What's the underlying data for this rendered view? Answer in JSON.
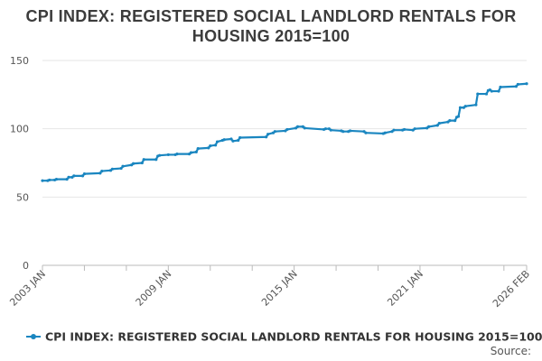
{
  "chart_data": {
    "type": "line",
    "title_lines": [
      "CPI INDEX: REGISTERED SOCIAL LANDLORD RENTALS FOR",
      "HOUSING 2015=100"
    ],
    "x_tick_labels": [
      "2003 JAN",
      "2009 JAN",
      "2015 JAN",
      "2021 JAN",
      "2026 FEB"
    ],
    "y_ticks": [
      0,
      50,
      100,
      150
    ],
    "ylim": [
      0,
      150
    ],
    "xlim": [
      "2003-01",
      "2026-02"
    ],
    "grid": true,
    "legend_position": "bottom",
    "source_label": "Source:",
    "series": [
      {
        "name": "CPI INDEX: REGISTERED SOCIAL LANDLORD RENTALS FOR HOUSING 2015=100",
        "color": "#1a86c0",
        "points": [
          [
            "2003-01",
            62.0
          ],
          [
            "2003-04",
            62.0
          ],
          [
            "2003-05",
            62.5
          ],
          [
            "2003-08",
            62.5
          ],
          [
            "2003-09",
            63.0
          ],
          [
            "2004-03",
            63.0
          ],
          [
            "2004-04",
            64.5
          ],
          [
            "2004-06",
            64.5
          ],
          [
            "2004-07",
            65.5
          ],
          [
            "2004-12",
            65.5
          ],
          [
            "2005-01",
            67.0
          ],
          [
            "2005-10",
            67.5
          ],
          [
            "2005-11",
            69.0
          ],
          [
            "2006-04",
            69.5
          ],
          [
            "2006-05",
            70.5
          ],
          [
            "2006-10",
            71.0
          ],
          [
            "2006-11",
            72.5
          ],
          [
            "2007-04",
            73.5
          ],
          [
            "2007-05",
            74.5
          ],
          [
            "2007-10",
            75.0
          ],
          [
            "2007-11",
            77.5
          ],
          [
            "2008-06",
            77.5
          ],
          [
            "2008-07",
            80.0
          ],
          [
            "2008-08",
            80.5
          ],
          [
            "2009-01",
            81.0
          ],
          [
            "2009-05",
            81.0
          ],
          [
            "2009-06",
            81.5
          ],
          [
            "2010-01",
            81.5
          ],
          [
            "2010-02",
            82.5
          ],
          [
            "2010-05",
            83.0
          ],
          [
            "2010-06",
            85.5
          ],
          [
            "2010-12",
            86.0
          ],
          [
            "2011-01",
            87.5
          ],
          [
            "2011-04",
            88.0
          ],
          [
            "2011-05",
            90.5
          ],
          [
            "2011-08",
            91.5
          ],
          [
            "2011-09",
            92.0
          ],
          [
            "2012-01",
            92.5
          ],
          [
            "2012-02",
            91.0
          ],
          [
            "2012-05",
            91.5
          ],
          [
            "2012-06",
            93.5
          ],
          [
            "2013-09",
            94.0
          ],
          [
            "2013-10",
            96.0
          ],
          [
            "2014-01",
            97.0
          ],
          [
            "2014-02",
            98.0
          ],
          [
            "2014-08",
            98.5
          ],
          [
            "2014-09",
            99.5
          ],
          [
            "2015-02",
            100.5
          ],
          [
            "2015-03",
            101.5
          ],
          [
            "2015-06",
            101.5
          ],
          [
            "2015-07",
            100.5
          ],
          [
            "2016-06",
            99.5
          ],
          [
            "2016-07",
            100.0
          ],
          [
            "2016-09",
            100.0
          ],
          [
            "2016-10",
            99.0
          ],
          [
            "2017-04",
            98.5
          ],
          [
            "2017-05",
            98.0
          ],
          [
            "2017-08",
            98.0
          ],
          [
            "2017-09",
            98.5
          ],
          [
            "2018-05",
            98.0
          ],
          [
            "2018-06",
            97.0
          ],
          [
            "2019-04",
            96.5
          ],
          [
            "2019-05",
            97.0
          ],
          [
            "2019-09",
            98.0
          ],
          [
            "2019-10",
            99.0
          ],
          [
            "2020-03",
            99.0
          ],
          [
            "2020-04",
            99.5
          ],
          [
            "2020-09",
            99.0
          ],
          [
            "2020-10",
            100.0
          ],
          [
            "2021-05",
            100.5
          ],
          [
            "2021-06",
            101.5
          ],
          [
            "2021-11",
            102.5
          ],
          [
            "2021-12",
            104.0
          ],
          [
            "2022-05",
            105.0
          ],
          [
            "2022-06",
            106.0
          ],
          [
            "2022-09",
            106.0
          ],
          [
            "2022-10",
            108.5
          ],
          [
            "2022-11",
            109.0
          ],
          [
            "2022-12",
            115.5
          ],
          [
            "2023-02",
            115.5
          ],
          [
            "2023-03",
            116.5
          ],
          [
            "2023-09",
            117.5
          ],
          [
            "2023-10",
            125.5
          ],
          [
            "2024-03",
            125.5
          ],
          [
            "2024-04",
            128.0
          ],
          [
            "2024-05",
            128.5
          ],
          [
            "2024-06",
            127.5
          ],
          [
            "2024-10",
            127.5
          ],
          [
            "2024-11",
            130.5
          ],
          [
            "2025-08",
            131.0
          ],
          [
            "2025-09",
            132.5
          ],
          [
            "2026-02",
            133.0
          ]
        ]
      }
    ]
  }
}
